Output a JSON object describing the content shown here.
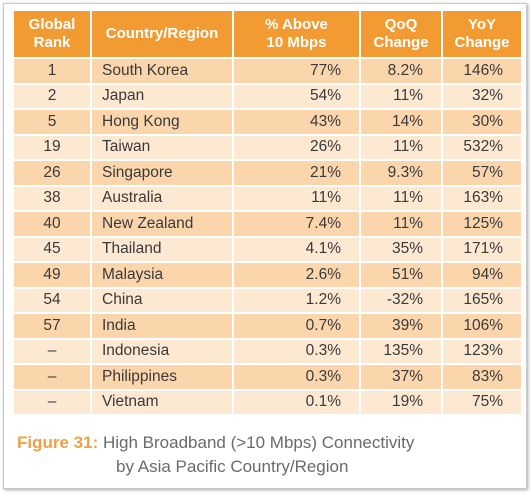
{
  "colors": {
    "header_bg": "#f39b33",
    "row_odd_bg": "#fbd6ad",
    "row_even_bg": "#fde8d2",
    "caption_label": "#f0a044",
    "caption_text": "#6a6a6a"
  },
  "chart_data": {
    "type": "table",
    "columns": [
      "Global Rank",
      "Country/Region",
      "% Above 10 Mbps",
      "QoQ Change",
      "YoY Change"
    ],
    "rows": [
      [
        "1",
        "South Korea",
        "77%",
        "8.2%",
        "146%"
      ],
      [
        "2",
        "Japan",
        "54%",
        "11%",
        "32%"
      ],
      [
        "5",
        "Hong Kong",
        "43%",
        "14%",
        "30%"
      ],
      [
        "19",
        "Taiwan",
        "26%",
        "11%",
        "532%"
      ],
      [
        "26",
        "Singapore",
        "21%",
        "9.3%",
        "57%"
      ],
      [
        "38",
        "Australia",
        "11%",
        "11%",
        "163%"
      ],
      [
        "40",
        "New Zealand",
        "7.4%",
        "11%",
        "125%"
      ],
      [
        "45",
        "Thailand",
        "4.1%",
        "35%",
        "171%"
      ],
      [
        "49",
        "Malaysia",
        "2.6%",
        "51%",
        "94%"
      ],
      [
        "54",
        "China",
        "1.2%",
        "-32%",
        "165%"
      ],
      [
        "57",
        "India",
        "0.7%",
        "39%",
        "106%"
      ],
      [
        "–",
        "Indonesia",
        "0.3%",
        "135%",
        "123%"
      ],
      [
        "–",
        "Philippines",
        "0.3%",
        "37%",
        "83%"
      ],
      [
        "–",
        "Vietnam",
        "0.1%",
        "19%",
        "75%"
      ]
    ]
  },
  "header": {
    "rank_line1": "Global",
    "rank_line2": "Rank",
    "country": "Country/Region",
    "pct_line1": "% Above",
    "pct_line2": "10 Mbps",
    "qoq_line1": "QoQ",
    "qoq_line2": "Change",
    "yoy_line1": "YoY",
    "yoy_line2": "Change"
  },
  "caption": {
    "label": "Figure 31:",
    "line1": "High Broadband (>10 Mbps) Connectivity",
    "line2": "by Asia Pacific Country/Region"
  }
}
